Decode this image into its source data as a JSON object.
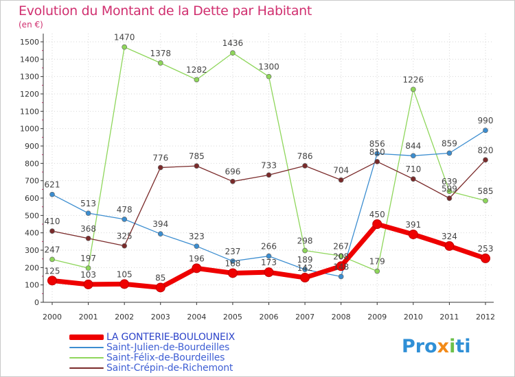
{
  "title": "Evolution du Montant de la Dette par Habitant",
  "unit": "(en €)",
  "logo": {
    "text": "Proxiti",
    "colors": [
      "#2f8fd6",
      "#f28a18",
      "#6cc04a",
      "#2f8fd6"
    ]
  },
  "chart_data": {
    "type": "line",
    "title": "Evolution du Montant de la Dette par Habitant",
    "subtitle": "(en €)",
    "x": [
      2000,
      2001,
      2002,
      2003,
      2004,
      2005,
      2006,
      2007,
      2008,
      2009,
      2010,
      2011,
      2012
    ],
    "ylim": [
      0,
      1500
    ],
    "yticks": [
      0,
      100,
      200,
      300,
      400,
      500,
      600,
      700,
      800,
      900,
      1000,
      1100,
      1200,
      1300,
      1400,
      1500
    ],
    "grid": true,
    "legend_position": "bottom-left",
    "series": [
      {
        "name": "LA GONTERIE-BOULOUNEIX",
        "color": "#ee0000",
        "values": [
          125,
          103,
          105,
          85,
          196,
          168,
          173,
          142,
          208,
          450,
          391,
          324,
          253
        ],
        "labels": [
          "125",
          "103",
          "105",
          "85",
          "196",
          "168",
          "173",
          "142",
          "208",
          "450",
          "391",
          "324",
          "253"
        ]
      },
      {
        "name": "Saint-Julien-de-Bourdeilles",
        "color": "#3b8dd0",
        "values": [
          621,
          513,
          478,
          394,
          323,
          237,
          266,
          189,
          148,
          856,
          844,
          859,
          990
        ],
        "labels": [
          "621",
          "513",
          "478",
          "394",
          "323",
          "237",
          "266",
          "189",
          "148",
          "856",
          "844",
          "859",
          "990"
        ]
      },
      {
        "name": "Saint-Félix-de-Bourdeilles",
        "color": "#8ed65a",
        "values": [
          247,
          197,
          1470,
          1378,
          1282,
          1436,
          1300,
          298,
          267,
          179,
          1226,
          639,
          585
        ],
        "labels": [
          "247",
          "197",
          "1470",
          "1378",
          "1282",
          "1436",
          "1300",
          "298",
          "267",
          "179",
          "1226",
          "639",
          "585"
        ]
      },
      {
        "name": "Saint-Crépin-de-Richemont",
        "color": "#7a2a2a",
        "values": [
          410,
          368,
          325,
          776,
          785,
          696,
          733,
          786,
          704,
          810,
          710,
          599,
          820
        ],
        "labels": [
          "410",
          "368",
          "325",
          "776",
          "785",
          "696",
          "733",
          "786",
          "704",
          "810",
          "710",
          "599",
          "820"
        ]
      }
    ]
  }
}
